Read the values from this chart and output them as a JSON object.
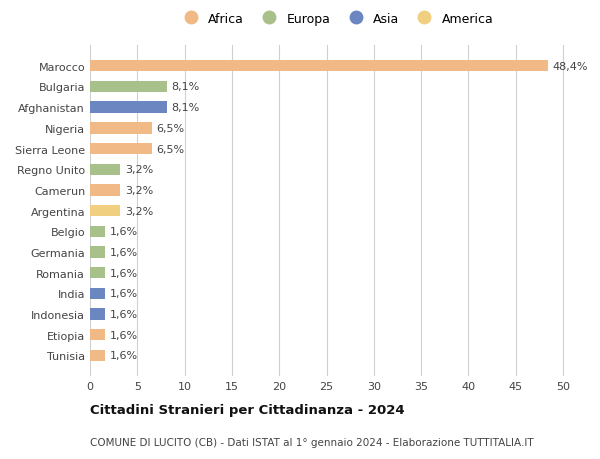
{
  "categories": [
    "Marocco",
    "Bulgaria",
    "Afghanistan",
    "Nigeria",
    "Sierra Leone",
    "Regno Unito",
    "Camerun",
    "Argentina",
    "Belgio",
    "Germania",
    "Romania",
    "India",
    "Indonesia",
    "Etiopia",
    "Tunisia"
  ],
  "values": [
    48.4,
    8.1,
    8.1,
    6.5,
    6.5,
    3.2,
    3.2,
    3.2,
    1.6,
    1.6,
    1.6,
    1.6,
    1.6,
    1.6,
    1.6
  ],
  "labels": [
    "48,4%",
    "8,1%",
    "8,1%",
    "6,5%",
    "6,5%",
    "3,2%",
    "3,2%",
    "3,2%",
    "1,6%",
    "1,6%",
    "1,6%",
    "1,6%",
    "1,6%",
    "1,6%",
    "1,6%"
  ],
  "continents": [
    "Africa",
    "Europa",
    "Asia",
    "Africa",
    "Africa",
    "Europa",
    "Africa",
    "America",
    "Europa",
    "Europa",
    "Europa",
    "Asia",
    "Asia",
    "Africa",
    "Africa"
  ],
  "continent_colors": {
    "Africa": "#F0B986",
    "Europa": "#A8C08A",
    "Asia": "#6B86C0",
    "America": "#F0D080"
  },
  "legend_order": [
    "Africa",
    "Europa",
    "Asia",
    "America"
  ],
  "title": "Cittadini Stranieri per Cittadinanza - 2024",
  "subtitle": "COMUNE DI LUCITO (CB) - Dati ISTAT al 1° gennaio 2024 - Elaborazione TUTTITALIA.IT",
  "xlim": [
    0,
    52
  ],
  "xticks": [
    0,
    5,
    10,
    15,
    20,
    25,
    30,
    35,
    40,
    45,
    50
  ],
  "background_color": "#ffffff",
  "grid_color": "#d0d0d0"
}
